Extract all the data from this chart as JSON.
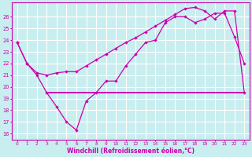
{
  "xlabel": "Windchill (Refroidissement éolien,°C)",
  "bg_color": "#c8eef0",
  "grid_color": "#ffffff",
  "line_color": "#cc00aa",
  "x_ticks": [
    0,
    1,
    2,
    3,
    4,
    5,
    6,
    7,
    8,
    9,
    10,
    11,
    12,
    13,
    14,
    15,
    16,
    17,
    18,
    19,
    20,
    21,
    22,
    23
  ],
  "ylim": [
    15.5,
    27.2
  ],
  "yticks": [
    16,
    17,
    18,
    19,
    20,
    21,
    22,
    23,
    24,
    25,
    26
  ],
  "series1_x": [
    0,
    1,
    2,
    3,
    4,
    5,
    6,
    7,
    8,
    9,
    10,
    11,
    12,
    13,
    14,
    15,
    16,
    17,
    18,
    19,
    20,
    21,
    22,
    23
  ],
  "series1_y": [
    23.8,
    22.0,
    21.0,
    19.5,
    18.3,
    17.0,
    16.3,
    18.8,
    19.5,
    20.5,
    20.5,
    21.8,
    22.8,
    23.8,
    24.0,
    25.5,
    26.0,
    26.0,
    25.5,
    25.8,
    26.3,
    26.3,
    24.3,
    22.0
  ],
  "series2_x": [
    0,
    1,
    2,
    3,
    4,
    5,
    6,
    7,
    8,
    9,
    10,
    11,
    12,
    13,
    14,
    15,
    16,
    17,
    18,
    19,
    20,
    21,
    22,
    23
  ],
  "series2_y": [
    23.8,
    22.0,
    21.2,
    21.0,
    21.2,
    21.3,
    21.3,
    21.8,
    22.3,
    22.8,
    23.3,
    23.8,
    24.2,
    24.7,
    25.2,
    25.7,
    26.2,
    26.7,
    26.8,
    26.5,
    25.8,
    26.5,
    26.5,
    19.5
  ],
  "series3_x": [
    3,
    23
  ],
  "series3_y": [
    19.5,
    19.5
  ]
}
